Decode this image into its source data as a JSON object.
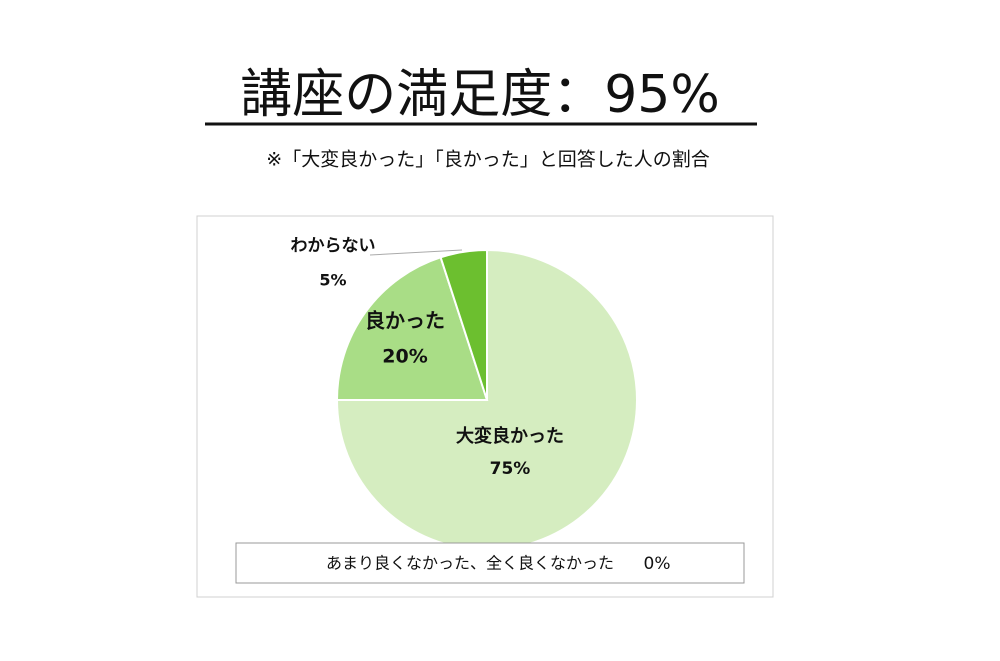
{
  "chart_data": {
    "type": "pie",
    "title": "講座の満足度：95%",
    "subtitle": "※「大変良かった」「良かった」と回答した人の割合",
    "categories": [
      "大変良かった",
      "良かった",
      "わからない",
      "あまり良くなかった、全く良くなかった"
    ],
    "values": [
      75,
      20,
      5,
      0
    ],
    "value_labels": [
      "75%",
      "20%",
      "5%",
      "0%"
    ],
    "colors": [
      "#d5edc0",
      "#a9dd86",
      "#6cbf2f",
      "#ffffff"
    ]
  }
}
